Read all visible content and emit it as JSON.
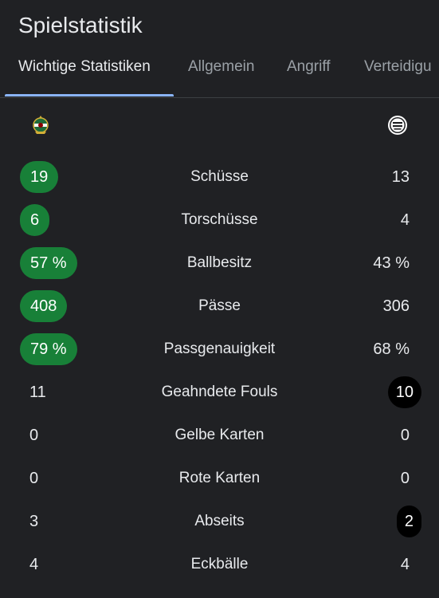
{
  "title": "Spielstatistik",
  "tabs": [
    {
      "label": "Wichtige Statistiken",
      "active": true
    },
    {
      "label": "Allgemein",
      "active": false
    },
    {
      "label": "Angriff",
      "active": false
    },
    {
      "label": "Verteidigu",
      "active": false
    }
  ],
  "teams": {
    "home_logo": "rapid-wien-crest-icon",
    "away_logo": "sturm-graz-crest-icon"
  },
  "colors": {
    "background": "#202124",
    "accent_tab": "#8ab4f8",
    "highlight_green": "#188038",
    "highlight_black": "#000000"
  },
  "stats": [
    {
      "label": "Schüsse",
      "home": "19",
      "away": "13",
      "leader": "home"
    },
    {
      "label": "Torschüsse",
      "home": "6",
      "away": "4",
      "leader": "home"
    },
    {
      "label": "Ballbesitz",
      "home": "57 %",
      "away": "43 %",
      "leader": "home"
    },
    {
      "label": "Pässe",
      "home": "408",
      "away": "306",
      "leader": "home"
    },
    {
      "label": "Passgenauigkeit",
      "home": "79 %",
      "away": "68 %",
      "leader": "home"
    },
    {
      "label": "Geahndete Fouls",
      "home": "11",
      "away": "10",
      "leader": "away"
    },
    {
      "label": "Gelbe Karten",
      "home": "0",
      "away": "0",
      "leader": "none"
    },
    {
      "label": "Rote Karten",
      "home": "0",
      "away": "0",
      "leader": "none"
    },
    {
      "label": "Abseits",
      "home": "3",
      "away": "2",
      "leader": "away"
    },
    {
      "label": "Eckbälle",
      "home": "4",
      "away": "4",
      "leader": "none"
    }
  ]
}
